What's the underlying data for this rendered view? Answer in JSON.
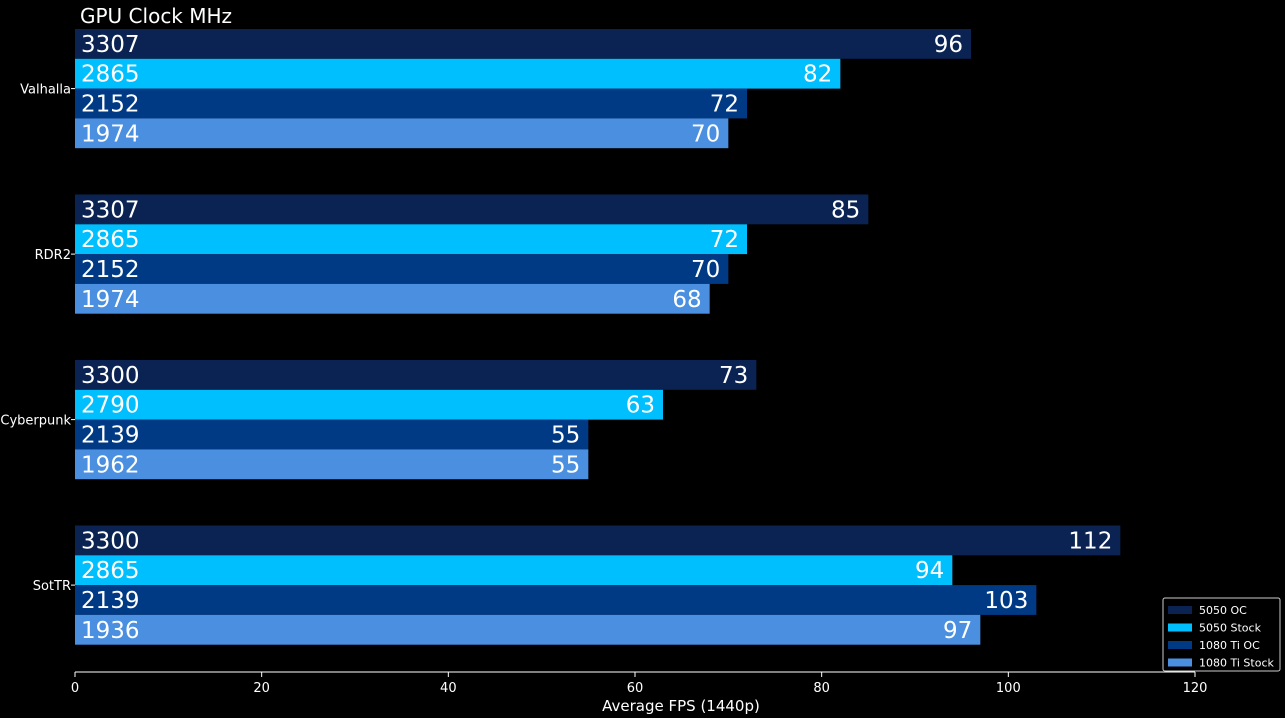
{
  "chart_data": {
    "type": "bar",
    "orientation": "horizontal",
    "title": "GPU Clock MHz",
    "xlabel": "Average FPS (1440p)",
    "ylabel": "",
    "xlim": [
      0,
      120
    ],
    "xticks": [
      0,
      20,
      40,
      60,
      80,
      100,
      120
    ],
    "categories": [
      "Valhalla",
      "RDR2",
      "Cyberpunk",
      "SotTR"
    ],
    "legend_position": "bottom-right",
    "grid": false,
    "series": [
      {
        "name": "5050 OC",
        "color": "#0a2352",
        "values": [
          96,
          85,
          73,
          112
        ],
        "clocks": [
          "3307",
          "3307",
          "3300",
          "3300"
        ]
      },
      {
        "name": "5050 Stock",
        "color": "#00bfff",
        "values": [
          82,
          72,
          63,
          94
        ],
        "clocks": [
          "2865",
          "2865",
          "2790",
          "2865"
        ]
      },
      {
        "name": "1080 Ti OC",
        "color": "#003a85",
        "values": [
          72,
          70,
          55,
          103
        ],
        "clocks": [
          "2152",
          "2152",
          "2139",
          "2139"
        ]
      },
      {
        "name": "1080 Ti Stock",
        "color": "#4a8fe0",
        "values": [
          70,
          68,
          55,
          97
        ],
        "clocks": [
          "1974",
          "1974",
          "1962",
          "1936"
        ]
      }
    ]
  }
}
